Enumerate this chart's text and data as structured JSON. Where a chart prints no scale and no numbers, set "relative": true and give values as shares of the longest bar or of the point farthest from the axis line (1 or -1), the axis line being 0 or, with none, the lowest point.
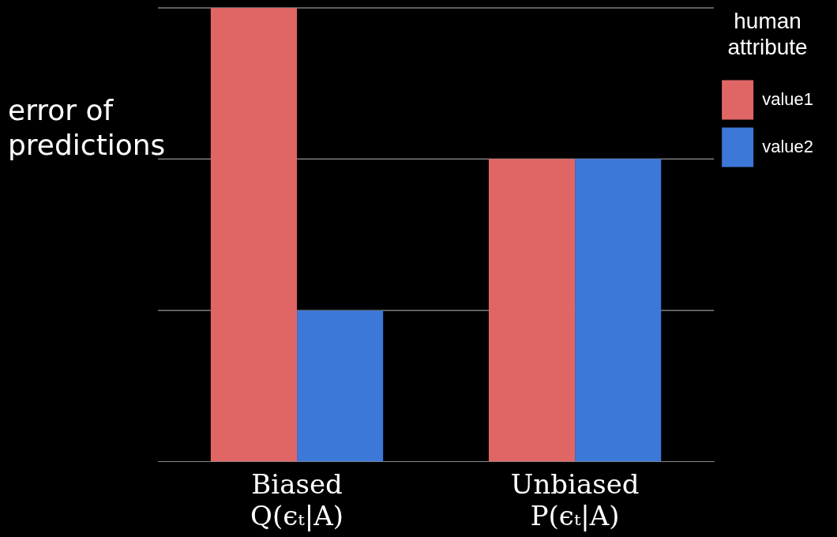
{
  "chart_data": {
    "type": "bar",
    "relative": true,
    "ylabel": "error of predictions",
    "legend_title": "human attribute",
    "legend": "top right",
    "ref_lines": [
      {
        "axis": "y",
        "value": 0.333,
        "color": "#bbbbbb"
      },
      {
        "axis": "y",
        "value": 0.667,
        "color": "#bbbbbb"
      },
      {
        "axis": "y",
        "value": 1,
        "color": "#bbbbbb"
      }
    ],
    "categories": [
      "Biased\nQ(ϵₜ|A)",
      "Unbiased\nP(ϵₜ|A)"
    ],
    "series": [
      {
        "name": "value1",
        "color": "#e06666",
        "values": [
          1,
          0.667
        ]
      },
      {
        "name": "value2",
        "color": "#3c78d8",
        "values": [
          0.333,
          0.667
        ]
      }
    ]
  }
}
